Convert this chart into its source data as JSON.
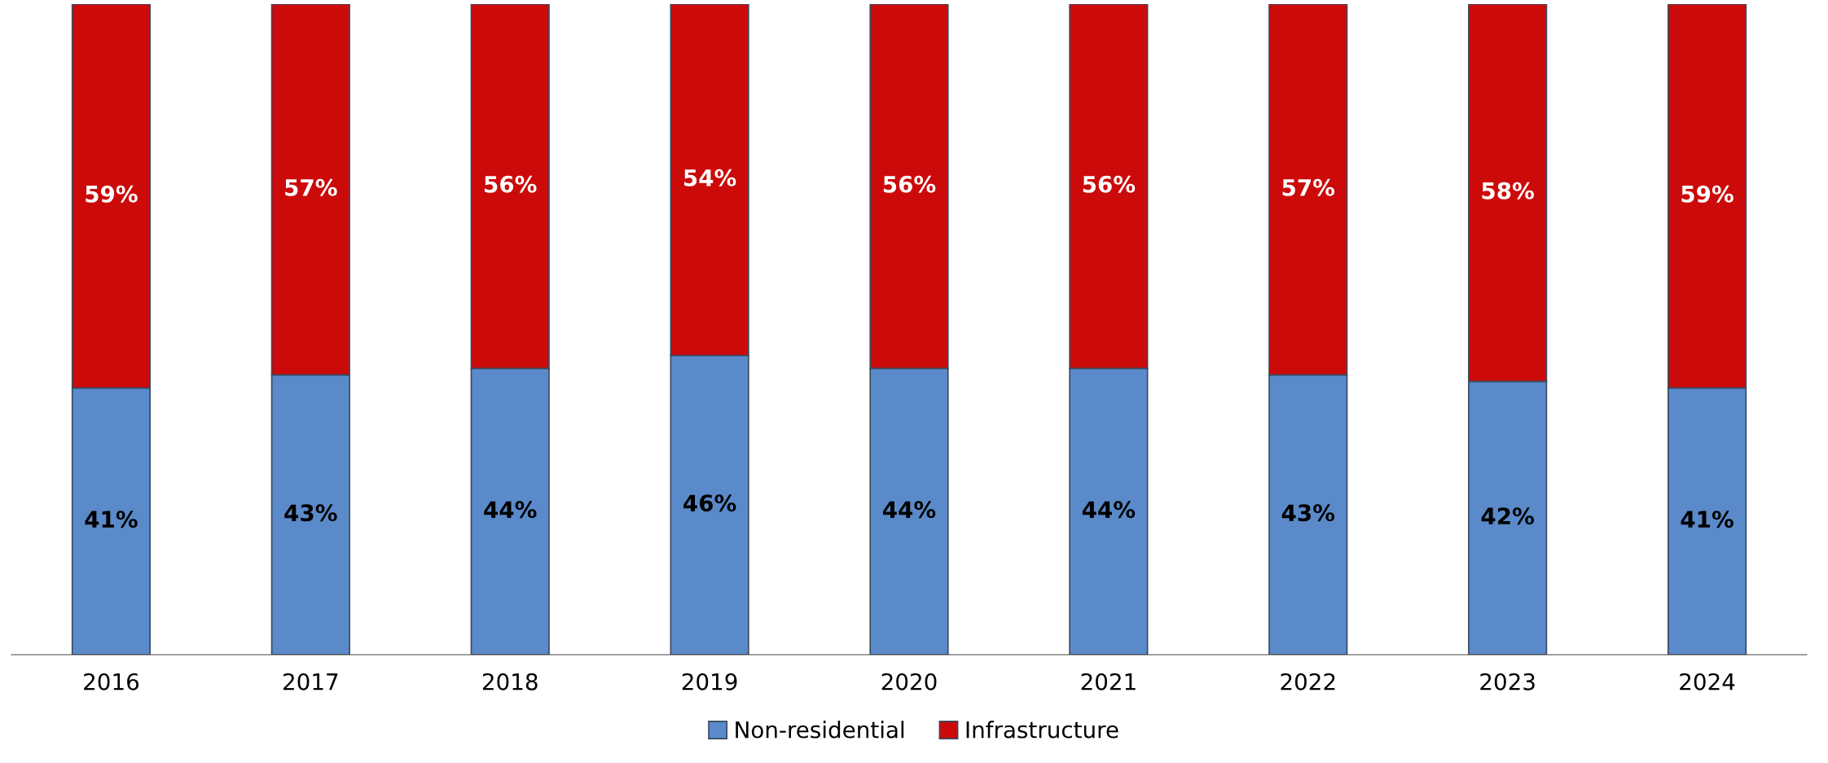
{
  "chart_data": {
    "type": "bar",
    "stacked": true,
    "categories": [
      "2016",
      "2017",
      "2018",
      "2019",
      "2020",
      "2021",
      "2022",
      "2023",
      "2024"
    ],
    "ylim": [
      0,
      100
    ],
    "tick_labels": "x",
    "grid": false,
    "legend": "bottom",
    "series": [
      {
        "name": "Non-residential",
        "color": "#5a8ac9",
        "values": [
          41,
          43,
          44,
          46,
          44,
          44,
          43,
          42,
          41
        ],
        "value_labels": [
          "41%",
          "43%",
          "44%",
          "46%",
          "44%",
          "44%",
          "43%",
          "42%",
          "41%"
        ]
      },
      {
        "name": "Infrastructure",
        "color": "#cc0a0a",
        "values": [
          59,
          57,
          56,
          54,
          56,
          56,
          57,
          58,
          59
        ],
        "value_labels": [
          "59%",
          "57%",
          "56%",
          "54%",
          "56%",
          "56%",
          "57%",
          "58%",
          "59%"
        ]
      }
    ]
  }
}
